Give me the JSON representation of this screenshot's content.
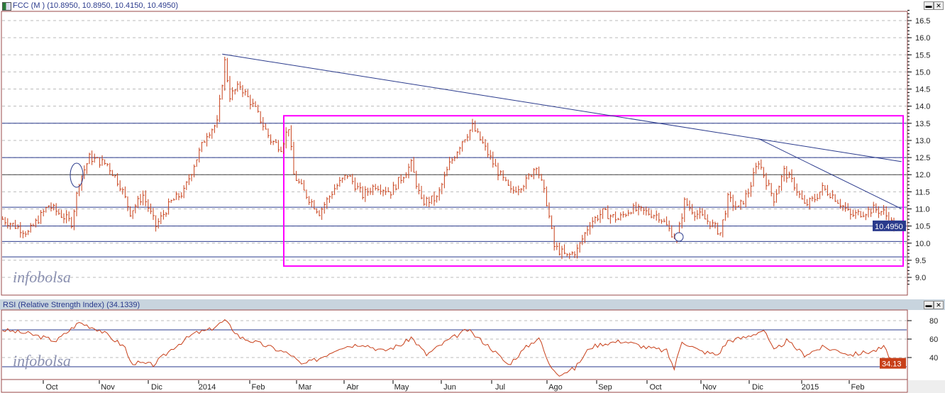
{
  "header": {
    "title": "FCC (M ) (10.8950, 10.8950, 10.4150, 10.4950)"
  },
  "rsi_header": {
    "title": "RSI (Relative Strength Index) (34.1339)"
  },
  "watermark": "infobolsa",
  "colors": {
    "bars": "#c8401a",
    "lines": "#2a3a8c",
    "box": "#ff00ff",
    "rsi": "#c8401a"
  },
  "chart_data": [
    {
      "type": "bar",
      "title": "FCC (M )",
      "ohlc_last": {
        "open": 10.895,
        "high": 10.895,
        "low": 10.415,
        "close": 10.495
      },
      "last_label": "10.4950",
      "yticks": [
        "16.5",
        "16.0",
        "15.5",
        "15.0",
        "14.5",
        "14.0",
        "13.5",
        "13.0",
        "12.5",
        "12.0",
        "11.5",
        "11.0",
        "10.5",
        "10.0",
        "9.5",
        "9.0"
      ],
      "ylim": [
        8.8,
        16.8
      ],
      "close_points": [
        [
          1,
          10.7
        ],
        [
          11,
          10.3
        ],
        [
          19,
          11.1
        ],
        [
          28,
          10.6
        ],
        [
          31,
          11.8
        ],
        [
          35,
          12.5
        ],
        [
          42,
          12.3
        ],
        [
          47,
          11.7
        ],
        [
          51,
          10.9
        ],
        [
          56,
          11.4
        ],
        [
          61,
          10.5
        ],
        [
          67,
          11.2
        ],
        [
          72,
          11.5
        ],
        [
          76,
          12.3
        ],
        [
          81,
          13.2
        ],
        [
          85,
          13.5
        ],
        [
          88,
          15.3
        ],
        [
          90,
          14.3
        ],
        [
          94,
          14.6
        ],
        [
          100,
          13.9
        ],
        [
          106,
          13.0
        ],
        [
          110,
          12.8
        ],
        [
          113,
          13.4
        ],
        [
          115,
          12.0
        ],
        [
          119,
          11.5
        ],
        [
          125,
          10.9
        ],
        [
          131,
          11.6
        ],
        [
          136,
          12.0
        ],
        [
          142,
          11.4
        ],
        [
          147,
          11.7
        ],
        [
          153,
          11.5
        ],
        [
          158,
          12.0
        ],
        [
          161,
          12.3
        ],
        [
          165,
          11.2
        ],
        [
          171,
          11.3
        ],
        [
          176,
          12.3
        ],
        [
          181,
          13.0
        ],
        [
          185,
          13.4
        ],
        [
          189,
          12.9
        ],
        [
          194,
          12.2
        ],
        [
          200,
          11.5
        ],
        [
          206,
          11.8
        ],
        [
          210,
          12.3
        ],
        [
          214,
          11.2
        ],
        [
          217,
          9.9
        ],
        [
          222,
          9.6
        ],
        [
          226,
          9.8
        ],
        [
          231,
          10.6
        ],
        [
          236,
          10.9
        ],
        [
          242,
          10.7
        ],
        [
          247,
          11.0
        ],
        [
          253,
          10.9
        ],
        [
          258,
          10.8
        ],
        [
          263,
          10.3
        ],
        [
          265,
          10.1
        ],
        [
          268,
          11.2
        ],
        [
          272,
          10.9
        ],
        [
          278,
          10.6
        ],
        [
          282,
          10.3
        ],
        [
          285,
          11.3
        ],
        [
          289,
          11.0
        ],
        [
          293,
          11.5
        ],
        [
          297,
          12.4
        ],
        [
          300,
          11.8
        ],
        [
          303,
          11.3
        ],
        [
          307,
          12.1
        ],
        [
          311,
          11.7
        ],
        [
          315,
          11.1
        ],
        [
          319,
          11.3
        ],
        [
          322,
          11.6
        ],
        [
          326,
          11.4
        ],
        [
          331,
          11.0
        ],
        [
          333,
          10.8
        ],
        [
          338,
          10.9
        ],
        [
          342,
          11.0
        ],
        [
          346,
          10.9
        ],
        [
          350,
          10.5
        ]
      ],
      "horizontal_levels": [
        13.5,
        12.5,
        12.0,
        11.05,
        10.5,
        10.05,
        9.6
      ],
      "box": {
        "price_top": 13.72,
        "price_bottom": 9.33
      },
      "trendlines": [
        [
          [
            87,
            15.52
          ],
          [
            353,
            12.38
          ]
        ],
        [
          [
            297,
            13.05
          ],
          [
            353,
            11.0
          ]
        ]
      ],
      "xticks": [
        "Oct",
        "Nov",
        "Dic",
        "2014",
        "Feb",
        "Mar",
        "Abr",
        "May",
        "Jun",
        "Jul",
        "Ago",
        "Sep",
        "Oct",
        "Nov",
        "Dic",
        "2015",
        "Feb"
      ]
    },
    {
      "type": "line",
      "title": "RSI (Relative Strength Index)",
      "last_value": 34.1339,
      "last_label": "34.13",
      "yticks": [
        "80",
        "60",
        "40"
      ],
      "levels": [
        70,
        30
      ],
      "ylim": [
        15,
        90
      ],
      "points": [
        [
          1,
          70
        ],
        [
          11,
          66
        ],
        [
          22,
          58
        ],
        [
          31,
          78
        ],
        [
          39,
          70
        ],
        [
          49,
          51
        ],
        [
          51,
          35
        ],
        [
          60,
          32
        ],
        [
          68,
          51
        ],
        [
          76,
          66
        ],
        [
          82,
          70
        ],
        [
          88,
          80
        ],
        [
          94,
          62
        ],
        [
          106,
          51
        ],
        [
          114,
          43
        ],
        [
          118,
          32
        ],
        [
          125,
          39
        ],
        [
          133,
          51
        ],
        [
          142,
          55
        ],
        [
          150,
          47
        ],
        [
          158,
          55
        ],
        [
          161,
          62
        ],
        [
          167,
          43
        ],
        [
          175,
          58
        ],
        [
          183,
          70
        ],
        [
          192,
          51
        ],
        [
          199,
          32
        ],
        [
          206,
          51
        ],
        [
          211,
          62
        ],
        [
          215,
          32
        ],
        [
          219,
          22
        ],
        [
          225,
          28
        ],
        [
          231,
          51
        ],
        [
          236,
          55
        ],
        [
          244,
          58
        ],
        [
          253,
          51
        ],
        [
          261,
          47
        ],
        [
          264,
          28
        ],
        [
          267,
          58
        ],
        [
          274,
          47
        ],
        [
          281,
          43
        ],
        [
          285,
          58
        ],
        [
          292,
          62
        ],
        [
          299,
          70
        ],
        [
          303,
          47
        ],
        [
          308,
          58
        ],
        [
          315,
          43
        ],
        [
          322,
          51
        ],
        [
          329,
          47
        ],
        [
          333,
          43
        ],
        [
          342,
          47
        ],
        [
          346,
          51
        ],
        [
          350,
          34
        ]
      ]
    }
  ]
}
